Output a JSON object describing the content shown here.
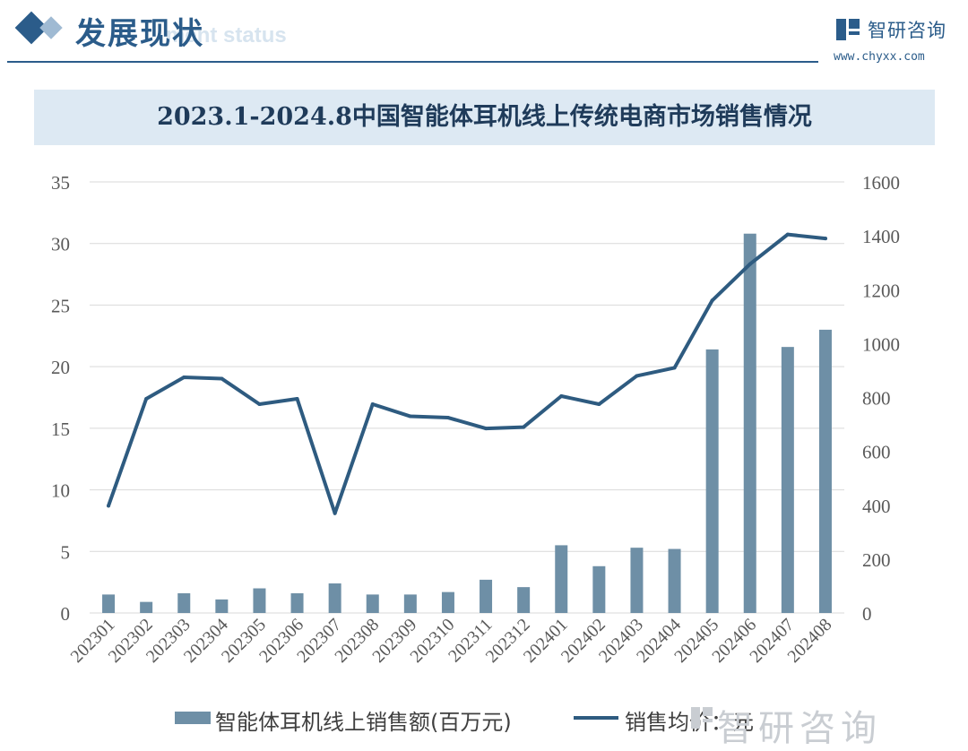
{
  "header": {
    "section_title": "发展现状",
    "section_subtitle": "ment status",
    "brand_name": "智研咨询",
    "brand_url": "www.chyxx.com"
  },
  "colors": {
    "bar": "#6e8fa6",
    "line": "#2e5b80",
    "grid": "#d9d9d9",
    "axis_text": "#595959",
    "title_band": "#dde9f3"
  },
  "footer": {
    "brand_text": "智研咨询"
  },
  "chart_data": {
    "type": "bar",
    "title": "2023.1-2024.8中国智能体耳机线上传统电商市场销售情况",
    "categories": [
      "202301",
      "202302",
      "202303",
      "202304",
      "202305",
      "202306",
      "202307",
      "202308",
      "202309",
      "202310",
      "202311",
      "202312",
      "202401",
      "202402",
      "202403",
      "202404",
      "202405",
      "202406",
      "202407",
      "202408"
    ],
    "ylim_left": [
      0,
      35
    ],
    "yticks_left": [
      0,
      5,
      10,
      15,
      20,
      25,
      30,
      35
    ],
    "ylim_right": [
      0,
      1600
    ],
    "yticks_right": [
      0,
      200,
      400,
      600,
      800,
      1000,
      1200,
      1400,
      1600
    ],
    "grid": true,
    "legend_position": "bottom",
    "series": [
      {
        "name": "智能体耳机线上销售额(百万元)",
        "type": "bar",
        "axis": "left",
        "values": [
          1.5,
          0.9,
          1.6,
          1.1,
          2.0,
          1.6,
          2.4,
          1.5,
          1.5,
          1.7,
          2.7,
          2.1,
          5.5,
          3.8,
          5.3,
          5.2,
          21.4,
          30.8,
          21.6,
          23.0
        ]
      },
      {
        "name": "销售均价：元",
        "type": "line",
        "axis": "right",
        "values": [
          398,
          795,
          875,
          870,
          775,
          795,
          370,
          775,
          730,
          725,
          685,
          690,
          805,
          775,
          880,
          910,
          1160,
          1295,
          1405,
          1390
        ]
      }
    ]
  }
}
